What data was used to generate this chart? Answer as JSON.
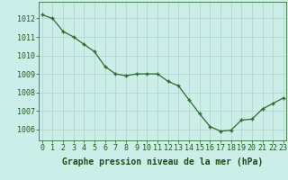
{
  "x": [
    0,
    1,
    2,
    3,
    4,
    5,
    6,
    7,
    8,
    9,
    10,
    11,
    12,
    13,
    14,
    15,
    16,
    17,
    18,
    19,
    20,
    21,
    22,
    23
  ],
  "y": [
    1012.2,
    1012.0,
    1011.3,
    1011.0,
    1010.6,
    1010.2,
    1009.4,
    1009.0,
    1008.9,
    1009.0,
    1009.0,
    1009.0,
    1008.6,
    1008.35,
    1007.6,
    1006.85,
    1006.15,
    1005.9,
    1005.95,
    1006.5,
    1006.55,
    1007.1,
    1007.4,
    1007.7
  ],
  "line_color": "#2d6a2d",
  "marker_color": "#2d6a2d",
  "bg_color": "#cceee8",
  "grid_color": "#b0d0cc",
  "xlabel": "Graphe pression niveau de la mer (hPa)",
  "xlabel_color": "#1a4d1a",
  "ylabel_ticks": [
    1006,
    1007,
    1008,
    1009,
    1010,
    1011,
    1012
  ],
  "xlim": [
    -0.3,
    23.3
  ],
  "ylim": [
    1005.4,
    1012.9
  ],
  "xtick_labels": [
    "0",
    "1",
    "2",
    "3",
    "4",
    "5",
    "6",
    "7",
    "8",
    "9",
    "10",
    "11",
    "12",
    "13",
    "14",
    "15",
    "16",
    "17",
    "18",
    "19",
    "20",
    "21",
    "22",
    "23"
  ],
  "tick_color": "#1a5c1a",
  "font_size_xlabel": 7.0,
  "font_size_ticks": 6.0
}
